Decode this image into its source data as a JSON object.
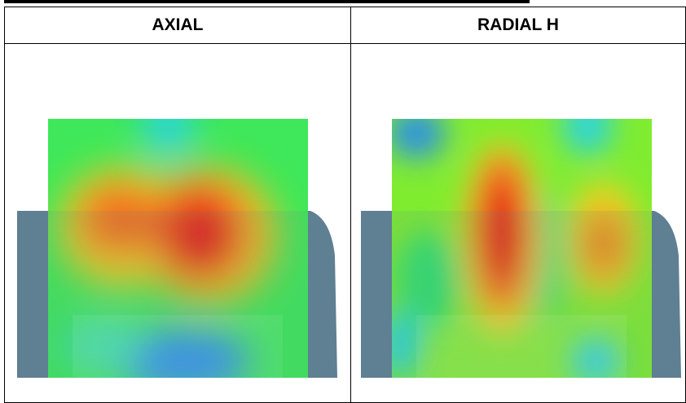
{
  "table": {
    "headers": [
      "AXIAL",
      "RADIAL H"
    ]
  }
}
